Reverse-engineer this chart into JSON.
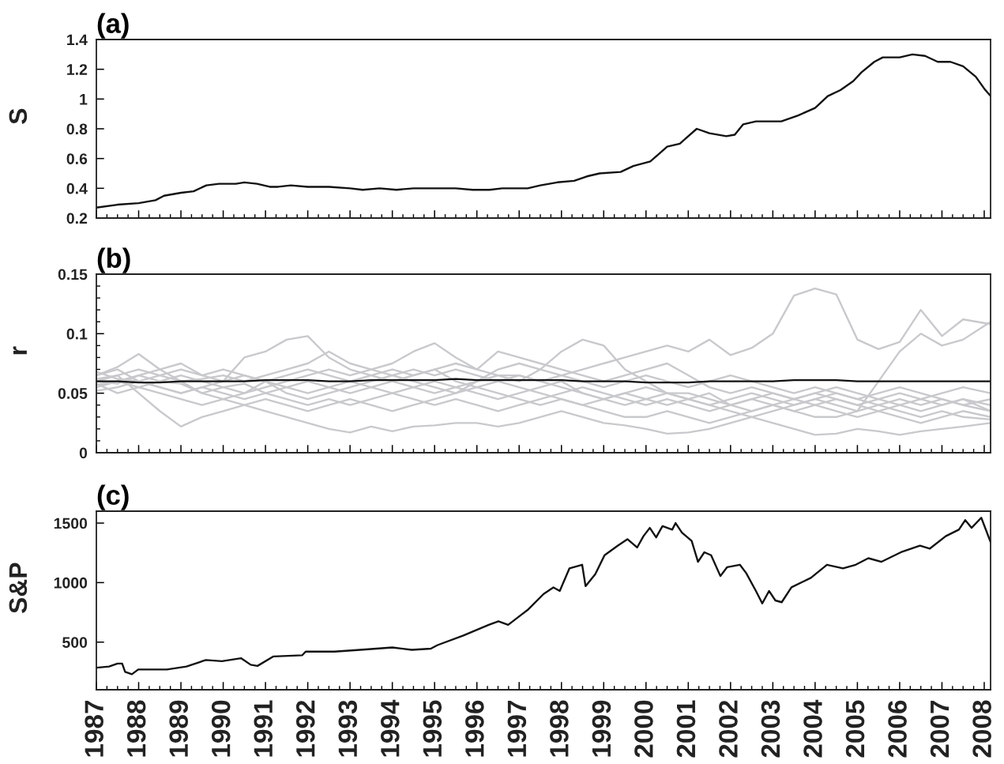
{
  "chart_data": [
    {
      "type": "line",
      "title": "(a)",
      "ylabel": "S",
      "tick_labels": "y",
      "x": [
        1987.0,
        1987.5,
        1988.0,
        1988.4,
        1988.6,
        1989.0,
        1989.3,
        1989.6,
        1989.9,
        1990.3,
        1990.5,
        1990.8,
        1991.1,
        1991.3,
        1991.6,
        1992.0,
        1992.5,
        1993.0,
        1993.3,
        1993.7,
        1994.1,
        1994.5,
        1995.0,
        1995.5,
        1995.9,
        1996.3,
        1996.6,
        1997.2,
        1997.5,
        1997.9,
        1998.3,
        1998.6,
        1998.9,
        1999.4,
        1999.7,
        2000.1,
        2000.3,
        2000.5,
        2000.8,
        2001.0,
        2001.2,
        2001.5,
        2001.9,
        2002.1,
        2002.3,
        2002.6,
        2003.2,
        2003.6,
        2004.0,
        2004.3,
        2004.6,
        2004.9,
        2005.1,
        2005.4,
        2005.6,
        2006.0,
        2006.3,
        2006.6,
        2006.9,
        2007.2,
        2007.5,
        2007.8,
        2008.0,
        2008.15
      ],
      "series": [
        {
          "color": "#111111",
          "values": [
            0.27,
            0.29,
            0.3,
            0.32,
            0.35,
            0.37,
            0.38,
            0.42,
            0.43,
            0.43,
            0.44,
            0.43,
            0.41,
            0.41,
            0.42,
            0.41,
            0.41,
            0.4,
            0.39,
            0.4,
            0.39,
            0.4,
            0.4,
            0.4,
            0.39,
            0.39,
            0.4,
            0.4,
            0.42,
            0.44,
            0.45,
            0.48,
            0.5,
            0.51,
            0.55,
            0.58,
            0.63,
            0.68,
            0.7,
            0.75,
            0.8,
            0.77,
            0.75,
            0.76,
            0.83,
            0.85,
            0.85,
            0.89,
            0.94,
            1.02,
            1.06,
            1.12,
            1.18,
            1.25,
            1.28,
            1.28,
            1.3,
            1.29,
            1.25,
            1.25,
            1.22,
            1.15,
            1.07,
            1.02
          ]
        }
      ],
      "xlim": [
        1987,
        2008.15
      ],
      "ylim": [
        0.2,
        1.4
      ],
      "yticks": [
        0.2,
        0.4,
        0.6,
        0.8,
        1,
        1.2,
        1.4
      ],
      "xticks": [
        1987,
        1988,
        1989,
        1990,
        1991,
        1992,
        1993,
        1994,
        1995,
        1996,
        1997,
        1998,
        1999,
        2000,
        2001,
        2002,
        2003,
        2004,
        2005,
        2006,
        2007,
        2008,
        {
          "value": 1987.25,
          "label": null
        },
        {
          "value": 1987.5,
          "label": null
        },
        {
          "value": 1987.75,
          "label": null
        },
        {
          "value": 1988.25,
          "label": null
        },
        {
          "value": 1988.5,
          "label": null
        },
        {
          "value": 1988.75,
          "label": null
        },
        {
          "value": 1989.25,
          "label": null
        },
        {
          "value": 1989.5,
          "label": null
        },
        {
          "value": 1989.75,
          "label": null
        },
        {
          "value": 1990.25,
          "label": null
        },
        {
          "value": 1990.5,
          "label": null
        },
        {
          "value": 1990.75,
          "label": null
        },
        {
          "value": 1991.25,
          "label": null
        },
        {
          "value": 1991.5,
          "label": null
        },
        {
          "value": 1991.75,
          "label": null
        },
        {
          "value": 1992.25,
          "label": null
        },
        {
          "value": 1992.5,
          "label": null
        },
        {
          "value": 1992.75,
          "label": null
        },
        {
          "value": 1993.25,
          "label": null
        },
        {
          "value": 1993.5,
          "label": null
        },
        {
          "value": 1993.75,
          "label": null
        },
        {
          "value": 1994.25,
          "label": null
        },
        {
          "value": 1994.5,
          "label": null
        },
        {
          "value": 1994.75,
          "label": null
        },
        {
          "value": 1995.25,
          "label": null
        },
        {
          "value": 1995.5,
          "label": null
        },
        {
          "value": 1995.75,
          "label": null
        },
        {
          "value": 1996.25,
          "label": null
        },
        {
          "value": 1996.5,
          "label": null
        },
        {
          "value": 1996.75,
          "label": null
        },
        {
          "value": 1997.25,
          "label": null
        },
        {
          "value": 1997.5,
          "label": null
        },
        {
          "value": 1997.75,
          "label": null
        },
        {
          "value": 1998.25,
          "label": null
        },
        {
          "value": 1998.5,
          "label": null
        },
        {
          "value": 1998.75,
          "label": null
        },
        {
          "value": 1999.25,
          "label": null
        },
        {
          "value": 1999.5,
          "label": null
        },
        {
          "value": 1999.75,
          "label": null
        },
        {
          "value": 2000.25,
          "label": null
        },
        {
          "value": 2000.5,
          "label": null
        },
        {
          "value": 2000.75,
          "label": null
        },
        {
          "value": 2001.25,
          "label": null
        },
        {
          "value": 2001.5,
          "label": null
        },
        {
          "value": 2001.75,
          "label": null
        },
        {
          "value": 2002.25,
          "label": null
        },
        {
          "value": 2002.5,
          "label": null
        },
        {
          "value": 2002.75,
          "label": null
        },
        {
          "value": 2003.25,
          "label": null
        },
        {
          "value": 2003.5,
          "label": null
        },
        {
          "value": 2003.75,
          "label": null
        },
        {
          "value": 2004.25,
          "label": null
        },
        {
          "value": 2004.5,
          "label": null
        },
        {
          "value": 2004.75,
          "label": null
        },
        {
          "value": 2005.25,
          "label": null
        },
        {
          "value": 2005.5,
          "label": null
        },
        {
          "value": 2005.75,
          "label": null
        },
        {
          "value": 2006.25,
          "label": null
        },
        {
          "value": 2006.5,
          "label": null
        },
        {
          "value": 2006.75,
          "label": null
        },
        {
          "value": 2007.25,
          "label": null
        },
        {
          "value": 2007.5,
          "label": null
        },
        {
          "value": 2007.75,
          "label": null
        }
      ]
    },
    {
      "type": "line",
      "title": "(b)",
      "ylabel": "r",
      "tick_labels": "y",
      "x": [
        1987.0,
        1987.5,
        1988.0,
        1988.5,
        1989.0,
        1989.5,
        1990.0,
        1990.5,
        1991.0,
        1991.5,
        1992.0,
        1992.5,
        1993.0,
        1993.5,
        1994.0,
        1994.5,
        1995.0,
        1995.5,
        1996.0,
        1996.5,
        1997.0,
        1997.5,
        1998.0,
        1998.5,
        1999.0,
        1999.5,
        2000.0,
        2000.5,
        2001.0,
        2001.5,
        2002.0,
        2002.5,
        2003.0,
        2003.5,
        2004.0,
        2004.5,
        2005.0,
        2005.5,
        2006.0,
        2006.5,
        2007.0,
        2007.5,
        2008.15
      ],
      "series": [
        {
          "color": "#c8c9cc",
          "values": [
            0.065,
            0.07,
            0.06,
            0.055,
            0.05,
            0.055,
            0.06,
            0.065,
            0.06,
            0.055,
            0.05,
            0.055,
            0.06,
            0.065,
            0.07,
            0.065,
            0.07,
            0.075,
            0.07,
            0.065,
            0.065,
            0.06,
            0.065,
            0.07,
            0.075,
            0.08,
            0.085,
            0.09,
            0.085,
            0.095,
            0.082,
            0.088,
            0.1,
            0.132,
            0.138,
            0.133,
            0.095,
            0.087,
            0.093,
            0.12,
            0.098,
            0.112,
            0.108
          ]
        },
        {
          "color": "#c8c9cc",
          "values": [
            0.055,
            0.06,
            0.065,
            0.07,
            0.06,
            0.05,
            0.045,
            0.05,
            0.06,
            0.065,
            0.07,
            0.065,
            0.06,
            0.055,
            0.05,
            0.055,
            0.06,
            0.055,
            0.05,
            0.045,
            0.05,
            0.055,
            0.06,
            0.05,
            0.045,
            0.05,
            0.045,
            0.04,
            0.045,
            0.05,
            0.04,
            0.035,
            0.04,
            0.035,
            0.03,
            0.03,
            0.035,
            0.06,
            0.085,
            0.1,
            0.09,
            0.095,
            0.11
          ]
        },
        {
          "color": "#c8c9cc",
          "values": [
            0.06,
            0.065,
            0.07,
            0.065,
            0.07,
            0.065,
            0.06,
            0.08,
            0.085,
            0.095,
            0.098,
            0.08,
            0.07,
            0.065,
            0.06,
            0.065,
            0.07,
            0.06,
            0.055,
            0.06,
            0.065,
            0.06,
            0.055,
            0.05,
            0.045,
            0.04,
            0.045,
            0.05,
            0.045,
            0.04,
            0.045,
            0.05,
            0.045,
            0.04,
            0.045,
            0.04,
            0.035,
            0.04,
            0.045,
            0.04,
            0.045,
            0.04,
            0.045
          ]
        },
        {
          "color": "#c8c9cc",
          "values": [
            0.058,
            0.05,
            0.055,
            0.06,
            0.065,
            0.06,
            0.055,
            0.05,
            0.055,
            0.06,
            0.065,
            0.07,
            0.065,
            0.07,
            0.075,
            0.085,
            0.092,
            0.08,
            0.07,
            0.085,
            0.08,
            0.075,
            0.07,
            0.065,
            0.06,
            0.065,
            0.07,
            0.075,
            0.065,
            0.055,
            0.05,
            0.055,
            0.05,
            0.045,
            0.05,
            0.045,
            0.04,
            0.045,
            0.05,
            0.045,
            0.05,
            0.055,
            0.05
          ]
        },
        {
          "color": "#c8c9cc",
          "values": [
            0.062,
            0.065,
            0.05,
            0.035,
            0.022,
            0.03,
            0.035,
            0.04,
            0.045,
            0.04,
            0.035,
            0.04,
            0.045,
            0.04,
            0.035,
            0.04,
            0.045,
            0.05,
            0.055,
            0.05,
            0.045,
            0.04,
            0.045,
            0.04,
            0.035,
            0.03,
            0.03,
            0.035,
            0.03,
            0.025,
            0.03,
            0.035,
            0.04,
            0.035,
            0.04,
            0.035,
            0.03,
            0.035,
            0.03,
            0.025,
            0.03,
            0.035,
            0.03
          ]
        },
        {
          "color": "#c8c9cc",
          "values": [
            0.057,
            0.06,
            0.055,
            0.05,
            0.045,
            0.04,
            0.045,
            0.04,
            0.035,
            0.03,
            0.025,
            0.02,
            0.017,
            0.022,
            0.018,
            0.022,
            0.023,
            0.025,
            0.025,
            0.022,
            0.025,
            0.03,
            0.035,
            0.03,
            0.025,
            0.023,
            0.02,
            0.016,
            0.017,
            0.02,
            0.025,
            0.03,
            0.025,
            0.02,
            0.015,
            0.016,
            0.02,
            0.018,
            0.015,
            0.018,
            0.02,
            0.022,
            0.025
          ]
        },
        {
          "color": "#c8c9cc",
          "values": [
            0.065,
            0.072,
            0.083,
            0.07,
            0.075,
            0.065,
            0.07,
            0.065,
            0.06,
            0.05,
            0.045,
            0.05,
            0.055,
            0.06,
            0.065,
            0.06,
            0.055,
            0.05,
            0.06,
            0.07,
            0.075,
            0.07,
            0.065,
            0.06,
            0.055,
            0.06,
            0.065,
            0.06,
            0.055,
            0.06,
            0.065,
            0.06,
            0.055,
            0.05,
            0.055,
            0.05,
            0.045,
            0.05,
            0.055,
            0.05,
            0.045,
            0.04,
            0.035
          ]
        },
        {
          "color": "#c8c9cc",
          "values": [
            0.052,
            0.055,
            0.06,
            0.055,
            0.05,
            0.055,
            0.05,
            0.045,
            0.05,
            0.055,
            0.06,
            0.055,
            0.05,
            0.055,
            0.06,
            0.055,
            0.05,
            0.055,
            0.06,
            0.065,
            0.06,
            0.07,
            0.085,
            0.095,
            0.09,
            0.07,
            0.06,
            0.05,
            0.045,
            0.04,
            0.035,
            0.03,
            0.035,
            0.04,
            0.045,
            0.05,
            0.045,
            0.04,
            0.035,
            0.03,
            0.035,
            0.03,
            0.028
          ]
        },
        {
          "color": "#c8c9cc",
          "values": [
            0.06,
            0.058,
            0.065,
            0.06,
            0.058,
            0.05,
            0.055,
            0.058,
            0.05,
            0.045,
            0.04,
            0.045,
            0.04,
            0.045,
            0.05,
            0.045,
            0.04,
            0.045,
            0.04,
            0.035,
            0.04,
            0.045,
            0.05,
            0.055,
            0.05,
            0.045,
            0.04,
            0.045,
            0.04,
            0.035,
            0.04,
            0.045,
            0.05,
            0.045,
            0.05,
            0.055,
            0.05,
            0.045,
            0.04,
            0.045,
            0.04,
            0.045,
            0.04
          ]
        },
        {
          "color": "#c8c9cc",
          "values": [
            0.068,
            0.062,
            0.06,
            0.065,
            0.06,
            0.062,
            0.065,
            0.06,
            0.065,
            0.07,
            0.075,
            0.085,
            0.075,
            0.07,
            0.065,
            0.07,
            0.065,
            0.07,
            0.065,
            0.06,
            0.055,
            0.05,
            0.045,
            0.04,
            0.045,
            0.05,
            0.055,
            0.05,
            0.05,
            0.045,
            0.04,
            0.045,
            0.04,
            0.045,
            0.04,
            0.045,
            0.04,
            0.035,
            0.04,
            0.035,
            0.04,
            0.045,
            0.035
          ]
        },
        {
          "color": "#111111",
          "values": [
            0.06,
            0.06,
            0.059,
            0.059,
            0.06,
            0.06,
            0.06,
            0.06,
            0.061,
            0.061,
            0.061,
            0.06,
            0.06,
            0.061,
            0.061,
            0.061,
            0.061,
            0.062,
            0.061,
            0.061,
            0.061,
            0.061,
            0.061,
            0.06,
            0.06,
            0.06,
            0.059,
            0.059,
            0.059,
            0.06,
            0.06,
            0.06,
            0.06,
            0.061,
            0.061,
            0.061,
            0.06,
            0.06,
            0.06,
            0.06,
            0.06,
            0.06,
            0.06
          ]
        }
      ],
      "xlim": [
        1987,
        2008.15
      ],
      "ylim": [
        0,
        0.15
      ],
      "yticks": [
        0,
        0.05,
        0.1,
        0.15,
        {
          "value": 0.01,
          "label": null
        },
        {
          "value": 0.02,
          "label": null
        },
        {
          "value": 0.03,
          "label": null
        },
        {
          "value": 0.04,
          "label": null
        },
        {
          "value": 0.06,
          "label": null
        },
        {
          "value": 0.07,
          "label": null
        },
        {
          "value": 0.08,
          "label": null
        },
        {
          "value": 0.09,
          "label": null
        },
        {
          "value": 0.11,
          "label": null
        },
        {
          "value": 0.12,
          "label": null
        },
        {
          "value": 0.13,
          "label": null
        },
        {
          "value": 0.14,
          "label": null
        }
      ],
      "xticks": [
        1987,
        1988,
        1989,
        1990,
        1991,
        1992,
        1993,
        1994,
        1995,
        1996,
        1997,
        1998,
        1999,
        2000,
        2001,
        2002,
        2003,
        2004,
        2005,
        2006,
        2007,
        2008,
        {
          "value": 1987.25,
          "label": null
        },
        {
          "value": 1987.5,
          "label": null
        },
        {
          "value": 1987.75,
          "label": null
        },
        {
          "value": 1988.25,
          "label": null
        },
        {
          "value": 1988.5,
          "label": null
        },
        {
          "value": 1988.75,
          "label": null
        },
        {
          "value": 1989.25,
          "label": null
        },
        {
          "value": 1989.5,
          "label": null
        },
        {
          "value": 1989.75,
          "label": null
        },
        {
          "value": 1990.25,
          "label": null
        },
        {
          "value": 1990.5,
          "label": null
        },
        {
          "value": 1990.75,
          "label": null
        },
        {
          "value": 1991.25,
          "label": null
        },
        {
          "value": 1991.5,
          "label": null
        },
        {
          "value": 1991.75,
          "label": null
        },
        {
          "value": 1992.25,
          "label": null
        },
        {
          "value": 1992.5,
          "label": null
        },
        {
          "value": 1992.75,
          "label": null
        },
        {
          "value": 1993.25,
          "label": null
        },
        {
          "value": 1993.5,
          "label": null
        },
        {
          "value": 1993.75,
          "label": null
        },
        {
          "value": 1994.25,
          "label": null
        },
        {
          "value": 1994.5,
          "label": null
        },
        {
          "value": 1994.75,
          "label": null
        },
        {
          "value": 1995.25,
          "label": null
        },
        {
          "value": 1995.5,
          "label": null
        },
        {
          "value": 1995.75,
          "label": null
        },
        {
          "value": 1996.25,
          "label": null
        },
        {
          "value": 1996.5,
          "label": null
        },
        {
          "value": 1996.75,
          "label": null
        },
        {
          "value": 1997.25,
          "label": null
        },
        {
          "value": 1997.5,
          "label": null
        },
        {
          "value": 1997.75,
          "label": null
        },
        {
          "value": 1998.25,
          "label": null
        },
        {
          "value": 1998.5,
          "label": null
        },
        {
          "value": 1998.75,
          "label": null
        },
        {
          "value": 1999.25,
          "label": null
        },
        {
          "value": 1999.5,
          "label": null
        },
        {
          "value": 1999.75,
          "label": null
        },
        {
          "value": 2000.25,
          "label": null
        },
        {
          "value": 2000.5,
          "label": null
        },
        {
          "value": 2000.75,
          "label": null
        },
        {
          "value": 2001.25,
          "label": null
        },
        {
          "value": 2001.5,
          "label": null
        },
        {
          "value": 2001.75,
          "label": null
        },
        {
          "value": 2002.25,
          "label": null
        },
        {
          "value": 2002.5,
          "label": null
        },
        {
          "value": 2002.75,
          "label": null
        },
        {
          "value": 2003.25,
          "label": null
        },
        {
          "value": 2003.5,
          "label": null
        },
        {
          "value": 2003.75,
          "label": null
        },
        {
          "value": 2004.25,
          "label": null
        },
        {
          "value": 2004.5,
          "label": null
        },
        {
          "value": 2004.75,
          "label": null
        },
        {
          "value": 2005.25,
          "label": null
        },
        {
          "value": 2005.5,
          "label": null
        },
        {
          "value": 2005.75,
          "label": null
        },
        {
          "value": 2006.25,
          "label": null
        },
        {
          "value": 2006.5,
          "label": null
        },
        {
          "value": 2006.75,
          "label": null
        },
        {
          "value": 2007.25,
          "label": null
        },
        {
          "value": 2007.5,
          "label": null
        },
        {
          "value": 2007.75,
          "label": null
        }
      ]
    },
    {
      "type": "line",
      "title": "(c)",
      "ylabel": "S&P",
      "x": [
        1987.0,
        1987.3,
        1987.5,
        1987.61,
        1987.68,
        1987.84,
        1987.99,
        1988.67,
        1989.13,
        1989.59,
        1989.97,
        1990.42,
        1990.65,
        1990.81,
        1991.19,
        1991.87,
        1991.95,
        1992.63,
        1993.24,
        1994.0,
        1994.46,
        1994.91,
        1995.07,
        1995.68,
        1996.28,
        1996.51,
        1996.74,
        1997.05,
        1997.2,
        1997.58,
        1997.81,
        1997.96,
        1998.19,
        1998.49,
        1998.57,
        1998.8,
        1999.02,
        1999.33,
        1999.56,
        1999.79,
        1999.94,
        2000.09,
        2000.24,
        2000.39,
        2000.62,
        2000.7,
        2000.85,
        2001.08,
        2001.23,
        2001.38,
        2001.54,
        2001.76,
        2001.92,
        2002.22,
        2002.37,
        2002.6,
        2002.75,
        2002.91,
        2003.06,
        2003.21,
        2003.44,
        2003.9,
        2004.28,
        2004.66,
        2004.96,
        2005.26,
        2005.57,
        2006.03,
        2006.48,
        2006.71,
        2007.09,
        2007.4,
        2007.55,
        2007.7,
        2007.93,
        2008.15
      ],
      "series": [
        {
          "color": "#111111",
          "values": [
            285,
            295,
            320,
            320,
            250,
            230,
            270,
            270,
            295,
            350,
            340,
            365,
            310,
            300,
            380,
            390,
            420,
            420,
            435,
            455,
            435,
            445,
            475,
            555,
            645,
            675,
            645,
            730,
            770,
            905,
            960,
            930,
            1120,
            1150,
            970,
            1070,
            1230,
            1310,
            1365,
            1295,
            1390,
            1460,
            1380,
            1475,
            1445,
            1500,
            1420,
            1350,
            1175,
            1255,
            1230,
            1055,
            1130,
            1150,
            1080,
            930,
            825,
            930,
            850,
            835,
            960,
            1040,
            1150,
            1120,
            1150,
            1205,
            1175,
            1255,
            1310,
            1285,
            1390,
            1445,
            1525,
            1460,
            1545,
            1340
          ]
        }
      ],
      "xlim": [
        1987,
        2008.15
      ],
      "ylim": [
        100,
        1600
      ],
      "yticks": [
        500,
        1000,
        1500
      ],
      "xticks": [
        1987,
        1988,
        1989,
        1990,
        1991,
        1992,
        1993,
        1994,
        1995,
        1996,
        1997,
        1998,
        1999,
        2000,
        2001,
        2002,
        2003,
        2004,
        2005,
        2006,
        2007,
        2008,
        {
          "value": 1987.25,
          "label": null
        },
        {
          "value": 1987.5,
          "label": null
        },
        {
          "value": 1987.75,
          "label": null
        },
        {
          "value": 1988.25,
          "label": null
        },
        {
          "value": 1988.5,
          "label": null
        },
        {
          "value": 1988.75,
          "label": null
        },
        {
          "value": 1989.25,
          "label": null
        },
        {
          "value": 1989.5,
          "label": null
        },
        {
          "value": 1989.75,
          "label": null
        },
        {
          "value": 1990.25,
          "label": null
        },
        {
          "value": 1990.5,
          "label": null
        },
        {
          "value": 1990.75,
          "label": null
        },
        {
          "value": 1991.25,
          "label": null
        },
        {
          "value": 1991.5,
          "label": null
        },
        {
          "value": 1991.75,
          "label": null
        },
        {
          "value": 1992.25,
          "label": null
        },
        {
          "value": 1992.5,
          "label": null
        },
        {
          "value": 1992.75,
          "label": null
        },
        {
          "value": 1993.25,
          "label": null
        },
        {
          "value": 1993.5,
          "label": null
        },
        {
          "value": 1993.75,
          "label": null
        },
        {
          "value": 1994.25,
          "label": null
        },
        {
          "value": 1994.5,
          "label": null
        },
        {
          "value": 1994.75,
          "label": null
        },
        {
          "value": 1995.25,
          "label": null
        },
        {
          "value": 1995.5,
          "label": null
        },
        {
          "value": 1995.75,
          "label": null
        },
        {
          "value": 1996.25,
          "label": null
        },
        {
          "value": 1996.5,
          "label": null
        },
        {
          "value": 1996.75,
          "label": null
        },
        {
          "value": 1997.25,
          "label": null
        },
        {
          "value": 1997.5,
          "label": null
        },
        {
          "value": 1997.75,
          "label": null
        },
        {
          "value": 1998.25,
          "label": null
        },
        {
          "value": 1998.5,
          "label": null
        },
        {
          "value": 1998.75,
          "label": null
        },
        {
          "value": 1999.25,
          "label": null
        },
        {
          "value": 1999.5,
          "label": null
        },
        {
          "value": 1999.75,
          "label": null
        },
        {
          "value": 2000.25,
          "label": null
        },
        {
          "value": 2000.5,
          "label": null
        },
        {
          "value": 2000.75,
          "label": null
        },
        {
          "value": 2001.25,
          "label": null
        },
        {
          "value": 2001.5,
          "label": null
        },
        {
          "value": 2001.75,
          "label": null
        },
        {
          "value": 2002.25,
          "label": null
        },
        {
          "value": 2002.5,
          "label": null
        },
        {
          "value": 2002.75,
          "label": null
        },
        {
          "value": 2003.25,
          "label": null
        },
        {
          "value": 2003.5,
          "label": null
        },
        {
          "value": 2003.75,
          "label": null
        },
        {
          "value": 2004.25,
          "label": null
        },
        {
          "value": 2004.5,
          "label": null
        },
        {
          "value": 2004.75,
          "label": null
        },
        {
          "value": 2005.25,
          "label": null
        },
        {
          "value": 2005.5,
          "label": null
        },
        {
          "value": 2005.75,
          "label": null
        },
        {
          "value": 2006.25,
          "label": null
        },
        {
          "value": 2006.5,
          "label": null
        },
        {
          "value": 2006.75,
          "label": null
        },
        {
          "value": 2007.25,
          "label": null
        },
        {
          "value": 2007.5,
          "label": null
        },
        {
          "value": 2007.75,
          "label": null
        }
      ]
    }
  ]
}
